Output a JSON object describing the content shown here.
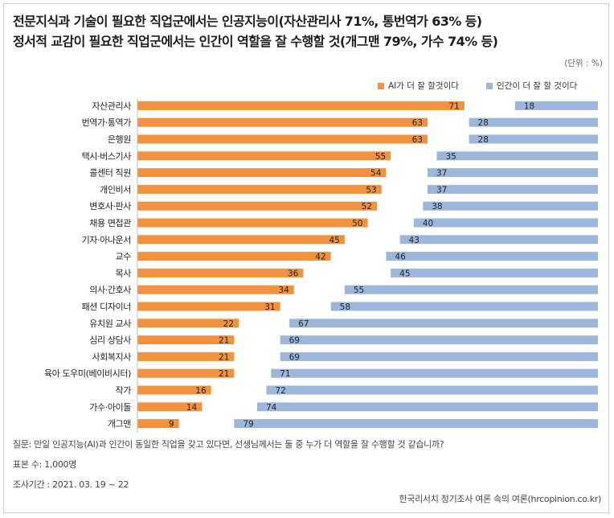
{
  "title_line1": "전문지식과 기술이 필요한 직업군에서는 인공지능이(자산관리사 71%, 통번역가 63% 등)",
  "title_line2": "정서적 교감이 필요한 직업군에서는 인간이 역할을 잘 수행할 것(개그맨 79%, 가수 74% 등)",
  "unit": "(단위 : %)",
  "colors": {
    "ai": "#f0923f",
    "human": "#9db7da",
    "frame": "#cfcfcf"
  },
  "chart_data": {
    "type": "bar",
    "orientation": "horizontal",
    "categories": [
      "자산관리사",
      "번역가·통역가",
      "은행원",
      "택시·버스기사",
      "콜센터 직원",
      "개인비서",
      "변호사·판사",
      "채용 면접관",
      "기자·아나운서",
      "교수",
      "목사",
      "의사·간호사",
      "패션 디자이너",
      "유치원 교사",
      "심리 상담사",
      "사회복지사",
      "육아 도우미(베이비시터)",
      "작가",
      "가수·아이돌",
      "개그맨"
    ],
    "series": [
      {
        "name": "AI가 더 잘 할것이다",
        "values": [
          71,
          63,
          63,
          55,
          54,
          53,
          52,
          50,
          45,
          42,
          36,
          34,
          31,
          22,
          21,
          21,
          21,
          16,
          14,
          9
        ]
      },
      {
        "name": "인간이 더 잘 할 것이다",
        "values": [
          18,
          28,
          28,
          35,
          37,
          37,
          38,
          40,
          43,
          46,
          45,
          55,
          58,
          67,
          69,
          69,
          71,
          72,
          74,
          79
        ]
      }
    ],
    "xlim": [
      0,
      100
    ],
    "legend": "top-right",
    "grid": false
  },
  "footer": {
    "question": "질문: 만일 인공지능(AI)과 인간이 동일한 직업을 갖고 있다면, 선생님께서는 둘 중 누가 더 역할을 잘 수행할 것 같습니까?",
    "sample": "표본 수: 1,000명",
    "period": "조사기간 : 2021. 03. 19 ~ 22",
    "source": "한국리서치 정기조사 여론 속의 여론(hrcopinion.co.kr)"
  }
}
